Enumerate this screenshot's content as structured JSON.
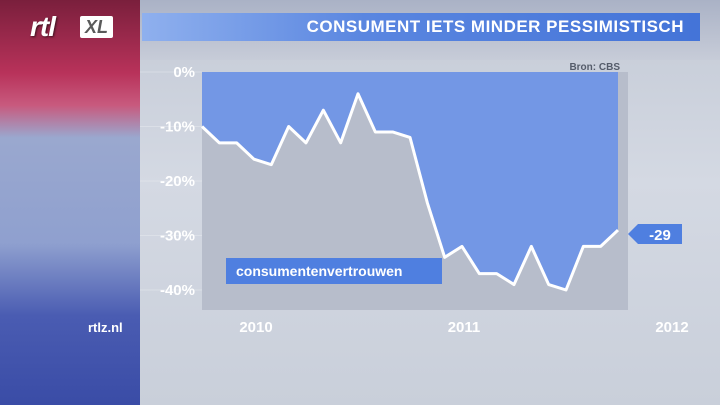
{
  "brand": {
    "logo_rtl": "rtl",
    "logo_xl": "XL",
    "site": "rtlz.nl"
  },
  "header": {
    "title": "CONSUMENT IETS MINDER PESSIMISTISCH"
  },
  "colors": {
    "fill": "#6f95e6",
    "line": "#ffffff",
    "plot_bg": "#b7bdcb",
    "accent": "#4f7fe0"
  },
  "chart_data": {
    "type": "area",
    "title": "CONSUMENT IETS MINDER PESSIMISTISCH",
    "source": "Bron: CBS",
    "series_label": "consumentenvertrouwen",
    "last_value_label": "-29",
    "ylim": [
      -42,
      0
    ],
    "yticks": [
      0,
      -10,
      -20,
      -30,
      -40
    ],
    "ytick_labels": [
      "0%",
      "-10%",
      "-20%",
      "-30%",
      "-40%"
    ],
    "xticks": [
      {
        "label": "2010",
        "index": 3
      },
      {
        "label": "2011",
        "index": 15
      },
      {
        "label": "2012",
        "index": 27
      }
    ],
    "series": [
      {
        "name": "consumentenvertrouwen",
        "values": [
          -10,
          -13,
          -13,
          -16,
          -17,
          -10,
          -13,
          -7,
          -13,
          -4,
          -11,
          -11,
          -12,
          -24,
          -34,
          -32,
          -37,
          -37,
          -39,
          -32,
          -39,
          -40,
          -32,
          -32,
          -29
        ]
      }
    ]
  }
}
